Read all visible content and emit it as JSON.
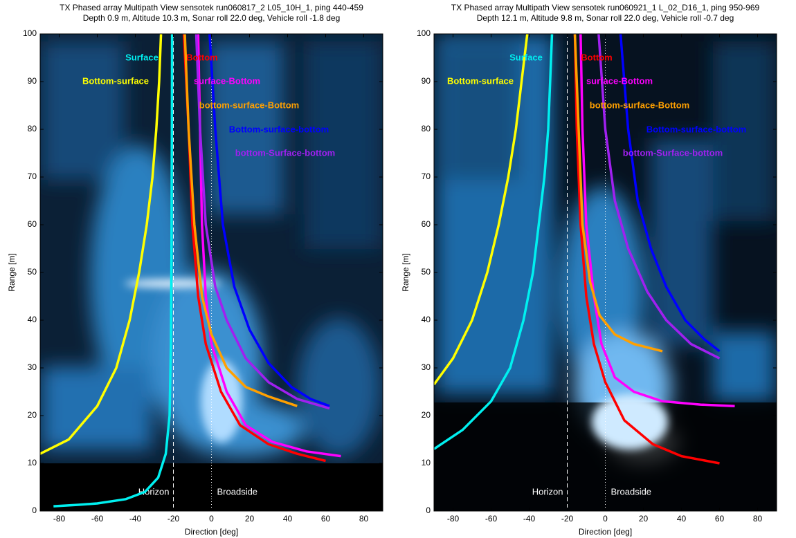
{
  "chart_data": [
    {
      "type": "line",
      "title": "TX Phased array Multipath View sensotek run060817_2 L05_10H_1, ping 440-459",
      "subtitle": "Depth 0.9 m, Altitude 10.3 m, Sonar roll 22.0 deg, Vehicle roll -1.8 deg",
      "xlabel": "Direction [deg]",
      "ylabel": "Range [m]",
      "xlim": [
        -90,
        90
      ],
      "ylim": [
        0,
        100
      ],
      "xticks": [
        -80,
        -60,
        -40,
        -20,
        0,
        20,
        40,
        60,
        80
      ],
      "yticks": [
        0,
        10,
        20,
        30,
        40,
        50,
        60,
        70,
        80,
        90,
        100
      ],
      "annotations": [
        {
          "text": "Horizon",
          "x": -20
        },
        {
          "text": "Broadside",
          "x": 0
        }
      ],
      "series": [
        {
          "name": "Surface",
          "color": "#00f0f0",
          "x": [
            -83,
            -70,
            -60,
            -45,
            -35,
            -28,
            -24,
            -22,
            -21.3,
            -21,
            -20.8,
            -20.7
          ],
          "values": [
            1,
            1.3,
            1.6,
            2.5,
            4,
            7,
            12,
            20,
            35,
            55,
            80,
            100
          ]
        },
        {
          "name": "Bottom-surface",
          "color": "#ffff00",
          "x": [
            -90,
            -75,
            -60,
            -50,
            -43,
            -38,
            -34,
            -31,
            -29,
            -27.5,
            -26.5
          ],
          "values": [
            12,
            15,
            22,
            30,
            40,
            50,
            60,
            70,
            80,
            90,
            100
          ]
        },
        {
          "name": "Bottom",
          "color": "#ff0000",
          "x": [
            -14.5,
            -12,
            -10,
            -7,
            -3,
            5,
            15,
            30,
            45,
            60
          ],
          "values": [
            100,
            80,
            60,
            45,
            35,
            25,
            18,
            14,
            12,
            10.5
          ]
        },
        {
          "name": "surface-Bottom",
          "color": "#ff00ff",
          "x": [
            -7,
            -6,
            -5,
            -3,
            0,
            8,
            18,
            32,
            50,
            68
          ],
          "values": [
            100,
            80,
            60,
            45,
            35,
            25,
            18,
            14.5,
            12.5,
            11.5
          ]
        },
        {
          "name": "bottom-surface-Bottom",
          "color": "#ffa000",
          "x": [
            -14,
            -12,
            -9,
            -5,
            0,
            8,
            18,
            30,
            45
          ],
          "values": [
            100,
            80,
            60,
            45,
            37,
            30,
            26,
            24,
            22
          ]
        },
        {
          "name": "Bottom-surface-bottom",
          "color": "#0000ff",
          "x": [
            -1,
            2,
            6,
            12,
            20,
            30,
            42,
            52,
            62
          ],
          "values": [
            100,
            80,
            60,
            47,
            38,
            31,
            26,
            23.5,
            22
          ]
        },
        {
          "name": "bottom-Surface-bottom",
          "color": "#a020f0",
          "x": [
            -8,
            -6,
            -3,
            2,
            8,
            18,
            30,
            45,
            62
          ],
          "values": [
            100,
            80,
            60,
            47,
            40,
            32,
            27,
            23.5,
            21.5
          ]
        }
      ]
    },
    {
      "type": "line",
      "title": "TX Phased array Multipath View sensotek run060921_1 L_02_D16_1, ping 950-969",
      "subtitle": "Depth 12.1 m, Altitude 9.8 m, Sonar roll 22.0 deg, Vehicle roll -0.7 deg",
      "xlabel": "Direction [deg]",
      "ylabel": "Range [m]",
      "xlim": [
        -90,
        90
      ],
      "ylim": [
        0,
        100
      ],
      "xticks": [
        -80,
        -60,
        -40,
        -20,
        0,
        20,
        40,
        60,
        80
      ],
      "yticks": [
        0,
        10,
        20,
        30,
        40,
        50,
        60,
        70,
        80,
        90,
        100
      ],
      "annotations": [
        {
          "text": "Horizon",
          "x": -20
        },
        {
          "text": "Broadside",
          "x": 0
        }
      ],
      "series": [
        {
          "name": "Surface",
          "color": "#00f0f0",
          "x": [
            -90,
            -75,
            -60,
            -50,
            -43,
            -38,
            -35,
            -32,
            -30,
            -29,
            -28
          ],
          "values": [
            13,
            17,
            23,
            30,
            40,
            50,
            60,
            70,
            80,
            90,
            100
          ]
        },
        {
          "name": "Bottom-surface",
          "color": "#ffff00",
          "x": [
            -90,
            -80,
            -70,
            -62,
            -56,
            -51,
            -47,
            -44,
            -41
          ],
          "values": [
            26.5,
            32,
            40,
            50,
            60,
            70,
            80,
            90,
            100
          ]
        },
        {
          "name": "Bottom",
          "color": "#ff0000",
          "x": [
            -16,
            -15,
            -13,
            -10,
            -6,
            0,
            10,
            25,
            40,
            60
          ],
          "values": [
            100,
            80,
            60,
            45,
            35,
            27,
            19,
            14,
            11.5,
            10
          ]
        },
        {
          "name": "surface-Bottom",
          "color": "#ff00ff",
          "x": [
            -13,
            -12,
            -10,
            -6,
            -2,
            5,
            15,
            30,
            50,
            68
          ],
          "values": [
            100,
            80,
            60,
            45,
            35,
            28,
            25,
            23,
            22.3,
            22
          ]
        },
        {
          "name": "bottom-surface-Bottom",
          "color": "#ffa000",
          "x": [
            -16,
            -14,
            -12,
            -8,
            -3,
            5,
            15,
            30
          ],
          "values": [
            100,
            80,
            60,
            48,
            41,
            37,
            35,
            33.5
          ]
        },
        {
          "name": "Bottom-surface-bottom",
          "color": "#0000ff",
          "x": [
            8,
            12,
            17,
            24,
            32,
            42,
            52,
            60
          ],
          "values": [
            100,
            80,
            65,
            55,
            47,
            40,
            36,
            33.5
          ]
        },
        {
          "name": "bottom-Surface-bottom",
          "color": "#a020f0",
          "x": [
            -3.5,
            0,
            5,
            12,
            22,
            32,
            45,
            60
          ],
          "values": [
            100,
            80,
            65,
            55,
            46,
            40,
            35,
            32
          ]
        }
      ]
    }
  ]
}
